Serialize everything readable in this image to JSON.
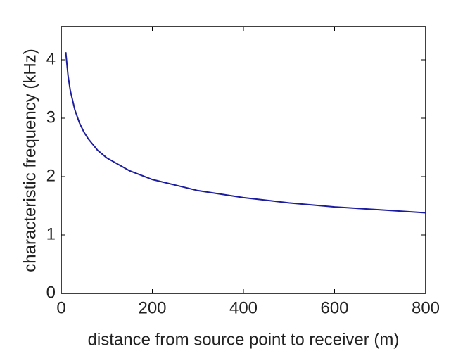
{
  "chart_data": {
    "type": "line",
    "xlabel": "distance from source point to receiver (m)",
    "ylabel": "characteristic frequency (kHz)",
    "x": [
      10,
      15,
      20,
      30,
      40,
      50,
      60,
      80,
      100,
      150,
      200,
      300,
      400,
      500,
      600,
      700,
      800
    ],
    "series": [
      {
        "color": "#1c1ca0",
        "values": [
          4.13,
          3.73,
          3.47,
          3.14,
          2.92,
          2.76,
          2.64,
          2.45,
          2.32,
          2.1,
          1.95,
          1.76,
          1.64,
          1.55,
          1.48,
          1.43,
          1.38
        ]
      }
    ],
    "xlim": [
      0,
      800
    ],
    "xticks": [
      0,
      200,
      400,
      600,
      800
    ],
    "ylim": [
      0,
      4.5
    ],
    "yticks": [
      0,
      1,
      2,
      3,
      4
    ]
  }
}
